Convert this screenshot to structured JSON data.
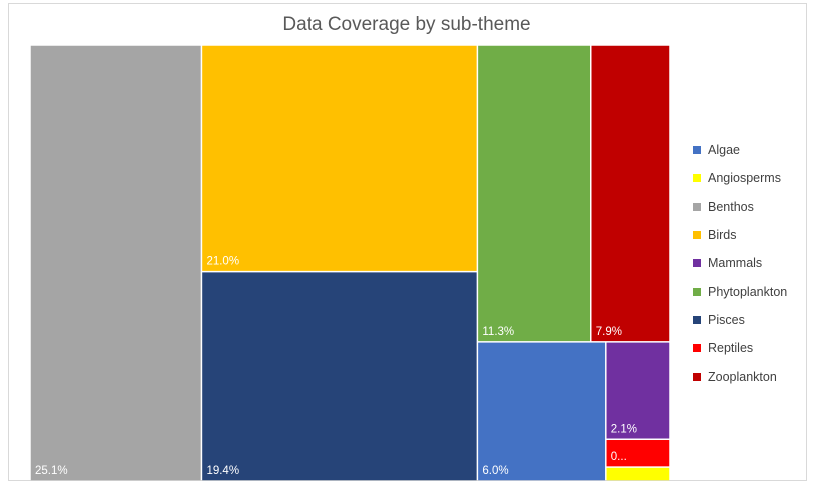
{
  "chart_data": {
    "type": "treemap",
    "title": "Data Coverage by sub-theme",
    "series": [
      {
        "name": "Benthos",
        "value": 25.1,
        "label": "25.1%",
        "color": "#a5a5a5"
      },
      {
        "name": "Birds",
        "value": 21.0,
        "label": "21.0%",
        "color": "#ffc000"
      },
      {
        "name": "Pisces",
        "value": 19.4,
        "label": "19.4%",
        "color": "#264478"
      },
      {
        "name": "Phytoplankton",
        "value": 11.3,
        "label": "11.3%",
        "color": "#70ad47"
      },
      {
        "name": "Zooplankton",
        "value": 7.9,
        "label": "7.9%",
        "color": "#c00000"
      },
      {
        "name": "Algae",
        "value": 6.0,
        "label": "6.0%",
        "color": "#4472c4"
      },
      {
        "name": "Mammals",
        "value": 2.1,
        "label": "2.1%",
        "color": "#7030a0"
      },
      {
        "name": "Reptiles",
        "value": 0.6,
        "label": "0...",
        "color": "#ff0000"
      },
      {
        "name": "Angiosperms",
        "value": 0.3,
        "label": "",
        "color": "#ffff00"
      }
    ],
    "legend": {
      "position": "right",
      "items": [
        {
          "name": "Algae",
          "color": "#4472c4"
        },
        {
          "name": "Angiosperms",
          "color": "#ffff00"
        },
        {
          "name": "Benthos",
          "color": "#a5a5a5"
        },
        {
          "name": "Birds",
          "color": "#ffc000"
        },
        {
          "name": "Mammals",
          "color": "#7030a0"
        },
        {
          "name": "Phytoplankton",
          "color": "#70ad47"
        },
        {
          "name": "Pisces",
          "color": "#264478"
        },
        {
          "name": "Reptiles",
          "color": "#ff0000"
        },
        {
          "name": "Zooplankton",
          "color": "#c00000"
        }
      ]
    }
  }
}
